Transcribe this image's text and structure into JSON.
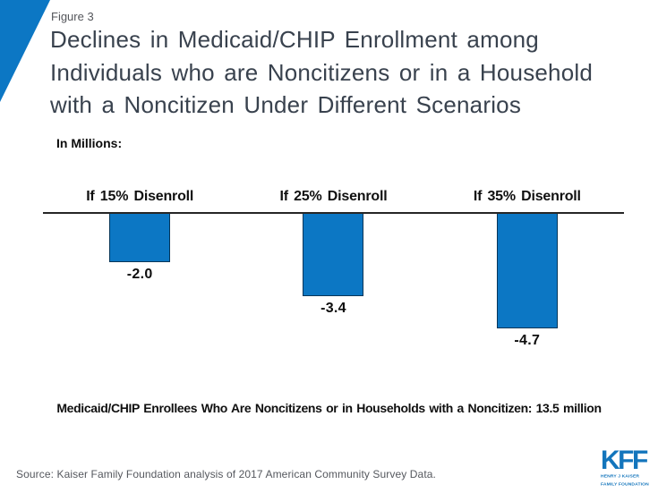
{
  "figure_label": "Figure 3",
  "title_lines": [
    "Declines in Medicaid/CHIP Enrollment among",
    "Individuals who are Noncitizens or in a Household",
    "with a Noncitizen Under Different Scenarios"
  ],
  "chart_data": {
    "type": "bar",
    "unit_label": "In Millions:",
    "categories": [
      "If 15% Disenroll",
      "If 25% Disenroll",
      "If 35% Disenroll"
    ],
    "values": [
      -2.0,
      -3.4,
      -4.7
    ],
    "value_labels": [
      "-2.0",
      "-3.4",
      "-4.7"
    ],
    "bar_color": "#0C77C4",
    "baseline": 0,
    "ylim": [
      -5,
      0
    ],
    "grid": false,
    "legend": "none",
    "note": "Medicaid/CHIP Enrollees Who Are Noncitizens or in Households with a Noncitizen: 13.5 million"
  },
  "source": "Source: Kaiser Family Foundation analysis of 2017 American Community Survey Data.",
  "logo": {
    "text": "KFF",
    "sub_line1": "HENRY J KAISER",
    "sub_line2": "FAMILY FOUNDATION",
    "color": "#1375BC"
  },
  "colors": {
    "brand_blue": "#0C77C4",
    "title_text": "#39424E",
    "axis_line": "#262626"
  }
}
